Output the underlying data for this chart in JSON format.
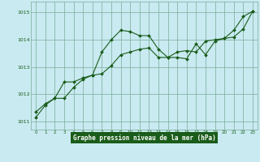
{
  "title": "Graphe pression niveau de la mer (hPa)",
  "bg_color": "#c8eaf0",
  "plot_bg_color": "#c8eaf0",
  "grid_color": "#7aaa99",
  "line_color": "#1a5c1a",
  "marker_color": "#1a5c1a",
  "xlabel_bg": "#1a5c1a",
  "xlabel_fg": "#ffffff",
  "xlim": [
    -0.5,
    23.5
  ],
  "ylim": [
    1010.7,
    1015.4
  ],
  "yticks": [
    1011,
    1012,
    1013,
    1014,
    1015
  ],
  "xticks": [
    0,
    1,
    2,
    3,
    4,
    5,
    6,
    7,
    8,
    9,
    10,
    11,
    12,
    13,
    14,
    15,
    16,
    17,
    18,
    19,
    20,
    21,
    22,
    23
  ],
  "series1_x": [
    0,
    1,
    2,
    3,
    4,
    5,
    6,
    7,
    8,
    9,
    10,
    11,
    12,
    13,
    14,
    15,
    16,
    17,
    18,
    19,
    20,
    21,
    22,
    23
  ],
  "series1_y": [
    1011.15,
    1011.6,
    1011.85,
    1012.45,
    1012.45,
    1012.6,
    1012.7,
    1012.75,
    1013.05,
    1013.45,
    1013.55,
    1013.65,
    1013.7,
    1013.35,
    1013.35,
    1013.55,
    1013.6,
    1013.55,
    1013.95,
    1014.0,
    1014.05,
    1014.35,
    1014.85,
    1015.05
  ],
  "series2_x": [
    0,
    1,
    2,
    3,
    4,
    5,
    6,
    7,
    8,
    9,
    10,
    11,
    12,
    13,
    14,
    15,
    16,
    17,
    18,
    19,
    20,
    21,
    22,
    23
  ],
  "series2_y": [
    1011.35,
    1011.65,
    1011.85,
    1011.85,
    1012.25,
    1012.55,
    1012.7,
    1013.55,
    1014.0,
    1014.35,
    1014.3,
    1014.15,
    1014.15,
    1013.65,
    1013.35,
    1013.35,
    1013.3,
    1013.85,
    1013.45,
    1013.95,
    1014.05,
    1014.1,
    1014.4,
    1015.05
  ]
}
